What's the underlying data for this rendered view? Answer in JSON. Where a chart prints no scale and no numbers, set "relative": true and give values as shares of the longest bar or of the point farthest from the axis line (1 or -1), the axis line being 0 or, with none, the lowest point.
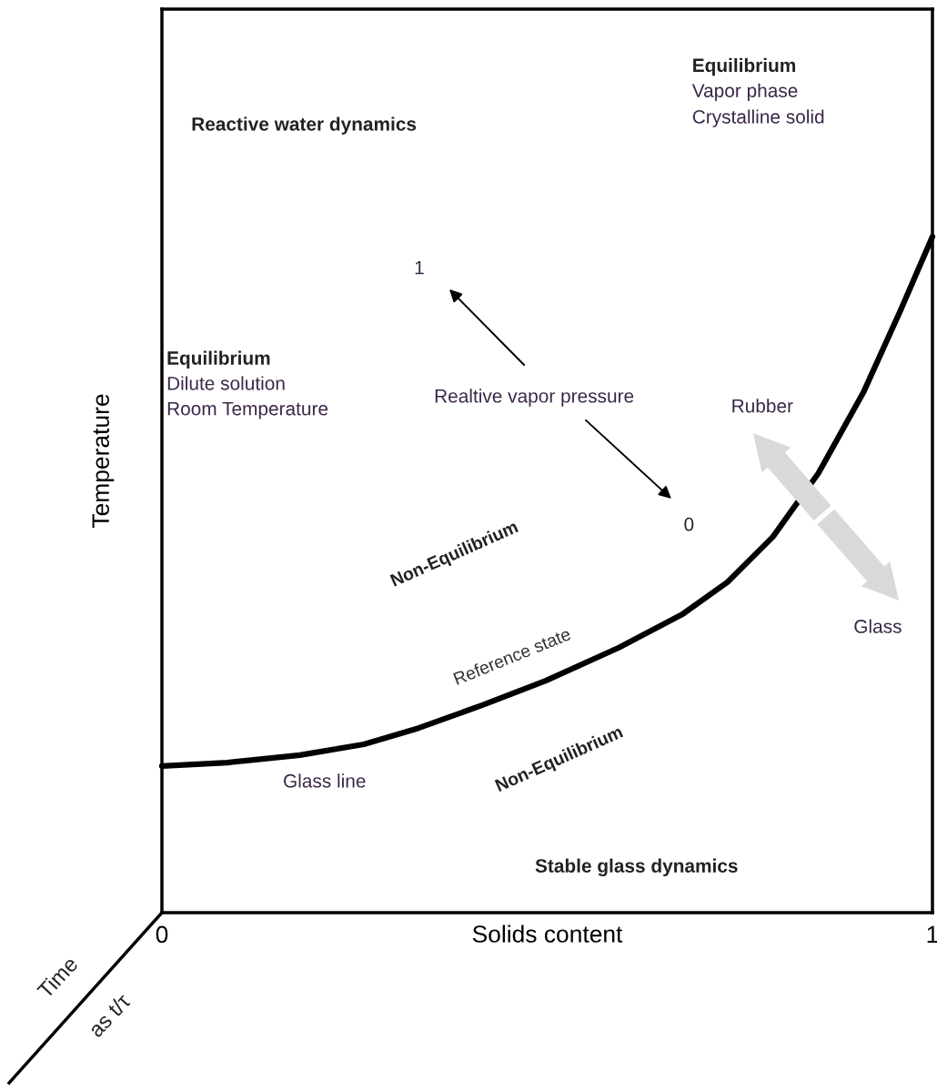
{
  "chart_data": {
    "type": "line",
    "relative": true,
    "xlabel": "Solids content",
    "ylabel": "Temperature",
    "xlim": [
      0,
      1
    ],
    "xticks": [
      0,
      1
    ],
    "x": [
      0,
      0.085,
      0.179,
      0.262,
      0.333,
      0.416,
      0.498,
      0.593,
      0.675,
      0.734,
      0.793,
      0.852,
      0.911,
      0.959,
      1.0
    ],
    "series": [
      {
        "color": "#000000",
        "values": [
          0.217,
          0.222,
          0.233,
          0.249,
          0.273,
          0.307,
          0.343,
          0.392,
          0.441,
          0.489,
          0.556,
          0.65,
          0.771,
          0.892,
          1.0
        ]
      }
    ],
    "annotations": [
      "Reactive water dynamics",
      "Equilibrium",
      "Vapor phase",
      "Crystalline solid",
      "1",
      "Equilibrium",
      "Dilute solution",
      "Room Temperature",
      "Realtive vapor pressure",
      "Rubber",
      "0",
      "Non-Equilibrium",
      "Reference state",
      "Glass",
      "Non-Equilibrium",
      "Glass line",
      "Stable glass dynamics",
      "Time",
      "as t/τ"
    ]
  }
}
